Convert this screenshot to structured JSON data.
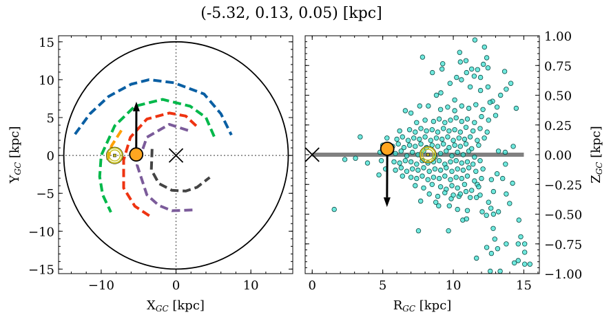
{
  "title": "(-5.32, 0.13, 0.05) [kpc]",
  "colors": {
    "arm_blue": "#0a5fa3",
    "arm_green": "#00b84a",
    "arm_red": "#ee3311",
    "arm_purple": "#7b5b9a",
    "arm_gray": "#444444",
    "arm_orange": "#ffa000",
    "marker": "#ffa620",
    "sun": "#c8c020",
    "scatter": "#33e0d0",
    "axis_line": "#808080"
  },
  "chart_data": [
    {
      "type": "line",
      "xlabel_main": "X",
      "xlabel_sub": "GC",
      "xlabel_unit": " [kpc]",
      "ylabel_main": "Y",
      "ylabel_sub": "GC",
      "ylabel_unit": " [kpc]",
      "xlim": [
        -15.7,
        15.6
      ],
      "ylim": [
        -15.6,
        15.8
      ],
      "xticks": [
        -10,
        0,
        10
      ],
      "yticks": [
        -15,
        -10,
        -5,
        0,
        5,
        10,
        15
      ],
      "tick_labels_x": [
        "−10",
        "0",
        "10"
      ],
      "tick_labels_y": [
        "−15",
        "−10",
        "−5",
        "0",
        "5",
        "10",
        "15"
      ],
      "boundary_circle_radius": 15,
      "arms": [
        {
          "color": "arm_blue",
          "points": [
            [
              -13.5,
              2.8
            ],
            [
              -11.5,
              5.5
            ],
            [
              -9,
              7.8
            ],
            [
              -6,
              9.4
            ],
            [
              -3.6,
              10
            ],
            [
              -0.3,
              9.6
            ],
            [
              3.75,
              8.1
            ],
            [
              6,
              5.5
            ],
            [
              7.4,
              2.7
            ]
          ]
        },
        {
          "color": "arm_green",
          "points": [
            [
              5.1,
              2.5
            ],
            [
              4,
              5
            ],
            [
              1.9,
              6.5
            ],
            [
              -1.8,
              7.4
            ],
            [
              -5.5,
              6.5
            ],
            [
              -8.2,
              3.9
            ],
            [
              -10,
              0
            ],
            [
              -10.2,
              -2.8
            ],
            [
              -9.8,
              -5.2
            ],
            [
              -8.7,
              -7.5
            ]
          ]
        },
        {
          "color": "arm_red",
          "points": [
            [
              2.7,
              3.9
            ],
            [
              1.3,
              5.2
            ],
            [
              -0.9,
              5.6
            ],
            [
              -3.9,
              4.8
            ],
            [
              -6.1,
              2.4
            ],
            [
              -7,
              -0.6
            ],
            [
              -7,
              -4.3
            ],
            [
              -5.5,
              -6.7
            ],
            [
              -3.2,
              -8.2
            ]
          ]
        },
        {
          "color": "arm_purple",
          "points": [
            [
              1.6,
              3.3
            ],
            [
              -0.9,
              4.1
            ],
            [
              -3.9,
              2.4
            ],
            [
              -5.2,
              -1.3
            ],
            [
              -3.9,
              -5.2
            ],
            [
              -2.3,
              -6.6
            ],
            [
              -0.55,
              -7.3
            ],
            [
              2.2,
              -7.2
            ]
          ]
        },
        {
          "color": "arm_gray",
          "points": [
            [
              -3.2,
              0.85
            ],
            [
              -3.3,
              -1.9
            ],
            [
              -2.3,
              -3.7
            ],
            [
              -0.55,
              -4.6
            ],
            [
              1.3,
              -4.7
            ],
            [
              2.8,
              -4.2
            ],
            [
              4.5,
              -2.9
            ]
          ]
        },
        {
          "color": "arm_orange",
          "points": [
            [
              -7.3,
              3.3
            ],
            [
              -8.6,
              1.3
            ],
            [
              -9.3,
              -1.1
            ]
          ]
        }
      ],
      "galactic_center": [
        0,
        0
      ],
      "sun": [
        -8.2,
        0
      ],
      "object": [
        -5.32,
        0.13
      ],
      "velocity_arrow_tip": [
        -5.3,
        7.1
      ]
    },
    {
      "type": "scatter",
      "xlabel_main": "R",
      "xlabel_sub": "GC",
      "xlabel_unit": " [kpc]",
      "ylabel_main": "Z",
      "ylabel_sub": "GC",
      "ylabel_unit": " [kpc]",
      "xlim": [
        -0.5,
        16.1
      ],
      "ylim": [
        -1.0,
        1.0
      ],
      "xticks": [
        0,
        5,
        10,
        15
      ],
      "yticks": [
        1.0,
        0.75,
        0.5,
        0.25,
        0.0,
        -0.25,
        -0.5,
        -0.75,
        -1.0
      ],
      "tick_labels_x": [
        "0",
        "5",
        "10",
        "15"
      ],
      "tick_labels_y": [
        "1.00",
        "0.75",
        "0.50",
        "0.25",
        "0.00",
        "−0.25",
        "−0.50",
        "−0.75",
        "−1.00"
      ],
      "disk_line": [
        [
          0,
          0
        ],
        [
          15,
          0
        ]
      ],
      "galactic_center": [
        0,
        0
      ],
      "sun": [
        8.2,
        0
      ],
      "object": [
        5.32,
        0.05
      ],
      "velocity_arrow_tip": [
        5.3,
        -0.44
      ],
      "points": [
        [
          11.53,
          0.965
        ],
        [
          12.21,
          0.905
        ],
        [
          7.82,
          0.82
        ],
        [
          10.45,
          0.86
        ],
        [
          12.37,
          0.815
        ],
        [
          10.5,
          0.78
        ],
        [
          10.9,
          0.79
        ],
        [
          9.25,
          0.765
        ],
        [
          9.2,
          0.72
        ],
        [
          8.52,
          0.69
        ],
        [
          11.3,
          0.72
        ],
        [
          11.72,
          0.715
        ],
        [
          12.13,
          0.76
        ],
        [
          12.46,
          0.73
        ],
        [
          13.64,
          0.7
        ],
        [
          10.23,
          0.65
        ],
        [
          10.94,
          0.69
        ],
        [
          11.48,
          0.66
        ],
        [
          11.93,
          0.65
        ],
        [
          14.08,
          0.6
        ],
        [
          10.58,
          0.63
        ],
        [
          9.77,
          0.6
        ],
        [
          11.2,
          0.57
        ],
        [
          12.46,
          0.57
        ],
        [
          13.75,
          0.55
        ],
        [
          11.93,
          0.54
        ],
        [
          9.12,
          0.52
        ],
        [
          8.8,
          0.5
        ],
        [
          10.1,
          0.46
        ],
        [
          6.6,
          0.37
        ],
        [
          7.0,
          0.35
        ],
        [
          14.46,
          0.39
        ],
        [
          12.78,
          0.45
        ],
        [
          13.35,
          0.5
        ],
        [
          7.62,
          0.41
        ],
        [
          8.23,
          0.41
        ],
        [
          3.4,
          0.15
        ],
        [
          1.56,
          -0.46
        ],
        [
          2.31,
          -0.04
        ],
        [
          3.07,
          -0.03
        ],
        [
          3.92,
          -0.07
        ],
        [
          4.73,
          -0.17
        ],
        [
          7.53,
          -0.64
        ],
        [
          9.66,
          -0.64
        ],
        [
          11.64,
          -0.87
        ],
        [
          12.37,
          -0.78
        ],
        [
          12.7,
          -0.83
        ],
        [
          13.14,
          -0.79
        ],
        [
          12.94,
          -0.71
        ],
        [
          12.83,
          -0.62
        ],
        [
          13.75,
          -0.75
        ],
        [
          14.65,
          -0.55
        ],
        [
          14.78,
          -0.69
        ],
        [
          14.6,
          -0.75
        ],
        [
          15.06,
          -0.75
        ],
        [
          15.06,
          -0.82
        ],
        [
          14.33,
          -0.91
        ],
        [
          14.6,
          -0.89
        ],
        [
          15.06,
          -0.92
        ],
        [
          15.43,
          -0.92
        ],
        [
          12.62,
          -0.98
        ],
        [
          13.32,
          -0.98
        ],
        [
          13.99,
          -0.41
        ],
        [
          13.75,
          -0.33
        ],
        [
          14.2,
          -0.24
        ],
        [
          13.7,
          -0.08
        ],
        [
          14.25,
          0.07
        ],
        [
          13.68,
          0.02
        ],
        [
          13.2,
          0.03
        ],
        [
          10.67,
          -0.55
        ],
        [
          10.94,
          -0.54
        ],
        [
          12.05,
          -0.48
        ],
        [
          12.35,
          -0.51
        ],
        [
          13.2,
          -0.48
        ],
        [
          12.85,
          -0.5
        ],
        [
          12.5,
          -0.4
        ],
        [
          12.67,
          -0.45
        ],
        [
          11.64,
          -0.36
        ],
        [
          11.0,
          -0.47
        ],
        [
          10.3,
          -0.46
        ],
        [
          9.72,
          -0.43
        ],
        [
          8.96,
          -0.43
        ],
        [
          8.76,
          -0.4
        ],
        [
          7.69,
          -0.39
        ],
        [
          9.85,
          -0.37
        ],
        [
          10.4,
          -0.35
        ],
        [
          10.9,
          -0.31
        ],
        [
          11.7,
          -0.25
        ],
        [
          12.85,
          -0.31
        ],
        [
          13.5,
          -0.2
        ],
        [
          13.1,
          -0.16
        ],
        [
          12.7,
          -0.21
        ],
        [
          4.8,
          0.02
        ],
        [
          5.9,
          0.01
        ],
        [
          6.3,
          0.03
        ],
        [
          6.7,
          -0.01
        ],
        [
          7.1,
          0.02
        ],
        [
          7.5,
          0.0
        ],
        [
          7.9,
          0.03
        ],
        [
          8.7,
          -0.02
        ],
        [
          9.1,
          0.01
        ],
        [
          9.5,
          0.03
        ],
        [
          9.9,
          -0.01
        ],
        [
          10.3,
          0.02
        ],
        [
          10.7,
          0.0
        ],
        [
          11.1,
          0.03
        ],
        [
          11.5,
          -0.02
        ],
        [
          5.0,
          0.08
        ],
        [
          5.7,
          0.07
        ],
        [
          6.1,
          0.09
        ],
        [
          6.5,
          0.06
        ],
        [
          6.9,
          0.08
        ],
        [
          7.3,
          0.07
        ],
        [
          7.7,
          0.09
        ],
        [
          8.1,
          0.06
        ],
        [
          8.5,
          0.08
        ],
        [
          8.9,
          0.07
        ],
        [
          9.3,
          0.09
        ],
        [
          9.7,
          0.06
        ],
        [
          10.1,
          0.08
        ],
        [
          10.5,
          0.07
        ],
        [
          10.9,
          0.09
        ],
        [
          11.3,
          0.05
        ],
        [
          11.8,
          0.08
        ],
        [
          4.9,
          -0.05
        ],
        [
          5.8,
          -0.06
        ],
        [
          6.2,
          -0.07
        ],
        [
          6.6,
          -0.05
        ],
        [
          7.0,
          -0.06
        ],
        [
          7.4,
          -0.08
        ],
        [
          7.8,
          -0.05
        ],
        [
          8.2,
          -0.07
        ],
        [
          8.6,
          -0.06
        ],
        [
          9.0,
          -0.05
        ],
        [
          9.4,
          -0.08
        ],
        [
          9.8,
          -0.06
        ],
        [
          10.2,
          -0.05
        ],
        [
          10.6,
          -0.07
        ],
        [
          11.0,
          -0.06
        ],
        [
          11.4,
          -0.08
        ],
        [
          11.9,
          -0.05
        ],
        [
          5.3,
          0.14
        ],
        [
          6.0,
          0.13
        ],
        [
          6.4,
          0.15
        ],
        [
          6.8,
          0.12
        ],
        [
          7.2,
          0.14
        ],
        [
          7.6,
          0.13
        ],
        [
          8.0,
          0.15
        ],
        [
          8.4,
          0.12
        ],
        [
          8.8,
          0.14
        ],
        [
          9.2,
          0.13
        ],
        [
          9.6,
          0.15
        ],
        [
          10.0,
          0.12
        ],
        [
          10.4,
          0.14
        ],
        [
          10.8,
          0.13
        ],
        [
          11.2,
          0.15
        ],
        [
          11.7,
          0.12
        ],
        [
          12.2,
          0.14
        ],
        [
          5.2,
          -0.12
        ],
        [
          5.9,
          -0.13
        ],
        [
          6.3,
          -0.11
        ],
        [
          6.7,
          -0.14
        ],
        [
          7.1,
          -0.12
        ],
        [
          7.5,
          -0.13
        ],
        [
          7.9,
          -0.11
        ],
        [
          8.3,
          -0.14
        ],
        [
          8.7,
          -0.12
        ],
        [
          9.1,
          -0.13
        ],
        [
          9.5,
          -0.11
        ],
        [
          9.9,
          -0.14
        ],
        [
          10.3,
          -0.12
        ],
        [
          10.7,
          -0.13
        ],
        [
          11.1,
          -0.11
        ],
        [
          11.6,
          -0.14
        ],
        [
          12.1,
          -0.12
        ],
        [
          6.2,
          0.2
        ],
        [
          6.9,
          0.21
        ],
        [
          7.3,
          0.19
        ],
        [
          7.7,
          0.22
        ],
        [
          8.1,
          0.2
        ],
        [
          8.5,
          0.21
        ],
        [
          8.9,
          0.19
        ],
        [
          9.3,
          0.22
        ],
        [
          9.7,
          0.2
        ],
        [
          10.1,
          0.21
        ],
        [
          10.5,
          0.19
        ],
        [
          10.9,
          0.23
        ],
        [
          11.4,
          0.2
        ],
        [
          11.9,
          0.22
        ],
        [
          12.4,
          0.19
        ],
        [
          6.4,
          -0.18
        ],
        [
          7.0,
          -0.19
        ],
        [
          7.4,
          -0.2
        ],
        [
          7.8,
          -0.18
        ],
        [
          8.2,
          -0.21
        ],
        [
          8.6,
          -0.19
        ],
        [
          9.0,
          -0.2
        ],
        [
          9.4,
          -0.18
        ],
        [
          9.8,
          -0.21
        ],
        [
          10.2,
          -0.19
        ],
        [
          10.6,
          -0.2
        ],
        [
          11.0,
          -0.18
        ],
        [
          11.5,
          -0.22
        ],
        [
          12.0,
          -0.2
        ],
        [
          7.4,
          0.27
        ],
        [
          8.0,
          0.29
        ],
        [
          8.6,
          0.28
        ],
        [
          9.0,
          0.3
        ],
        [
          9.4,
          0.27
        ],
        [
          9.8,
          0.29
        ],
        [
          10.2,
          0.31
        ],
        [
          10.6,
          0.28
        ],
        [
          11.0,
          0.3
        ],
        [
          11.5,
          0.27
        ],
        [
          12.0,
          0.32
        ],
        [
          12.5,
          0.29
        ],
        [
          13.0,
          0.33
        ],
        [
          7.3,
          -0.26
        ],
        [
          7.9,
          -0.28
        ],
        [
          8.5,
          -0.25
        ],
        [
          9.1,
          -0.27
        ],
        [
          9.5,
          -0.29
        ],
        [
          9.9,
          -0.26
        ],
        [
          10.3,
          -0.28
        ],
        [
          10.8,
          -0.25
        ],
        [
          11.3,
          -0.3
        ],
        [
          11.8,
          -0.27
        ],
        [
          9.1,
          0.38
        ],
        [
          9.6,
          0.4
        ],
        [
          10.1,
          0.37
        ],
        [
          10.6,
          0.41
        ],
        [
          11.1,
          0.39
        ],
        [
          11.6,
          0.42
        ],
        [
          12.1,
          0.38
        ],
        [
          12.6,
          0.44
        ],
        [
          13.1,
          0.4
        ],
        [
          8.3,
          -0.33
        ],
        [
          8.9,
          -0.35
        ],
        [
          9.4,
          -0.32
        ],
        [
          10.0,
          -0.34
        ],
        [
          10.5,
          -0.33
        ],
        [
          11.2,
          -0.36
        ],
        [
          11.9,
          -0.34
        ]
      ]
    }
  ]
}
